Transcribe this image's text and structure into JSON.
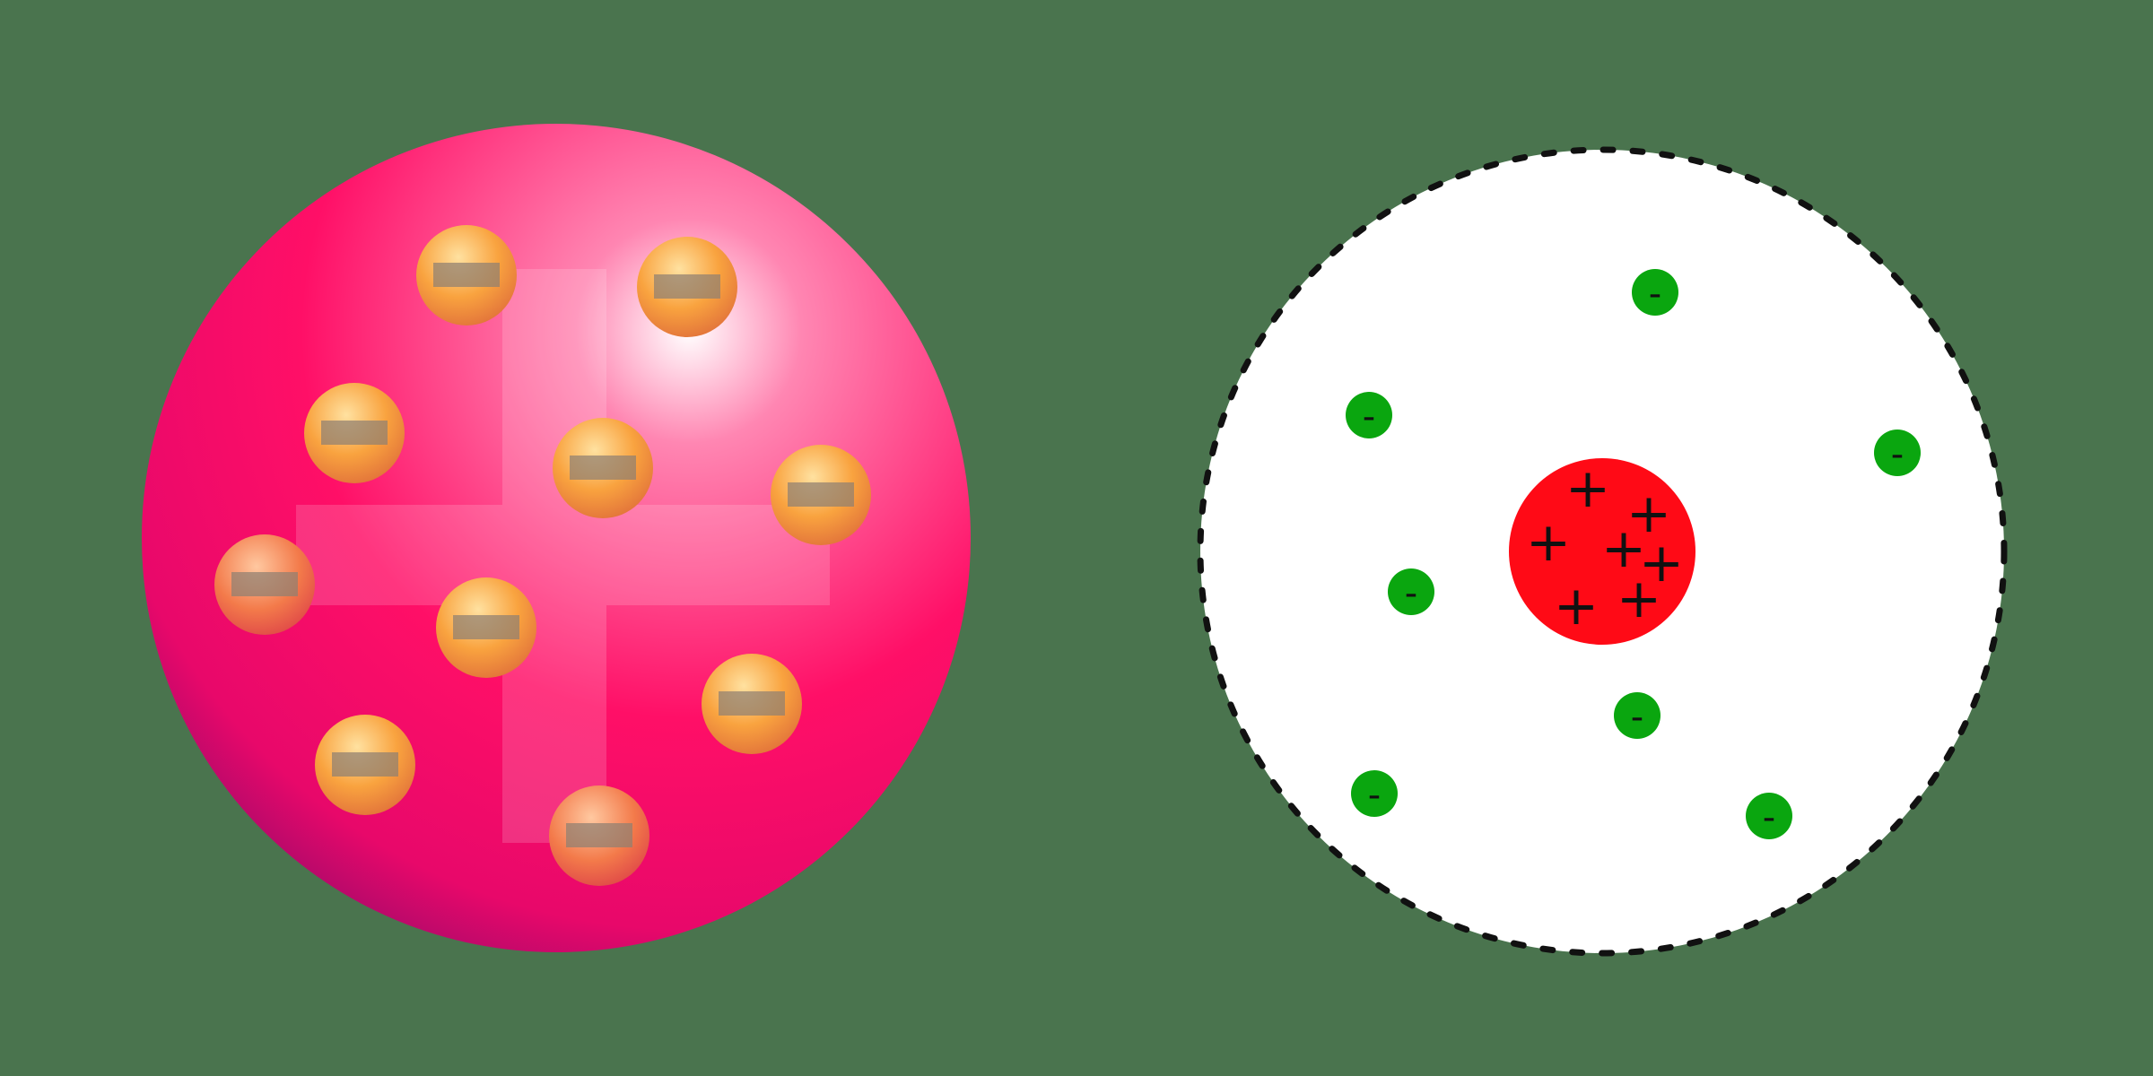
{
  "colors": {
    "background": "#4a744e",
    "plum_sphere": "#ff0f67",
    "plum_sphere_shadow": "#9a0a6a",
    "electron_orange": "#f9a33f",
    "nucleus_red": "#ff0a16",
    "electron_green": "#0aa60f",
    "rutherford_outline": "#111111"
  },
  "thomson_model": {
    "positive_symbol_icon": "plus-icon",
    "electron_count": 10,
    "electron_icon": "minus-bar-icon"
  },
  "rutherford_model": {
    "nucleus": {
      "plus_labels": [
        "+",
        "+",
        "+",
        "+",
        "+",
        "+",
        "+"
      ]
    },
    "electron_labels": [
      "-",
      "-",
      "-",
      "-",
      "-",
      "-",
      "-",
      "-"
    ]
  }
}
